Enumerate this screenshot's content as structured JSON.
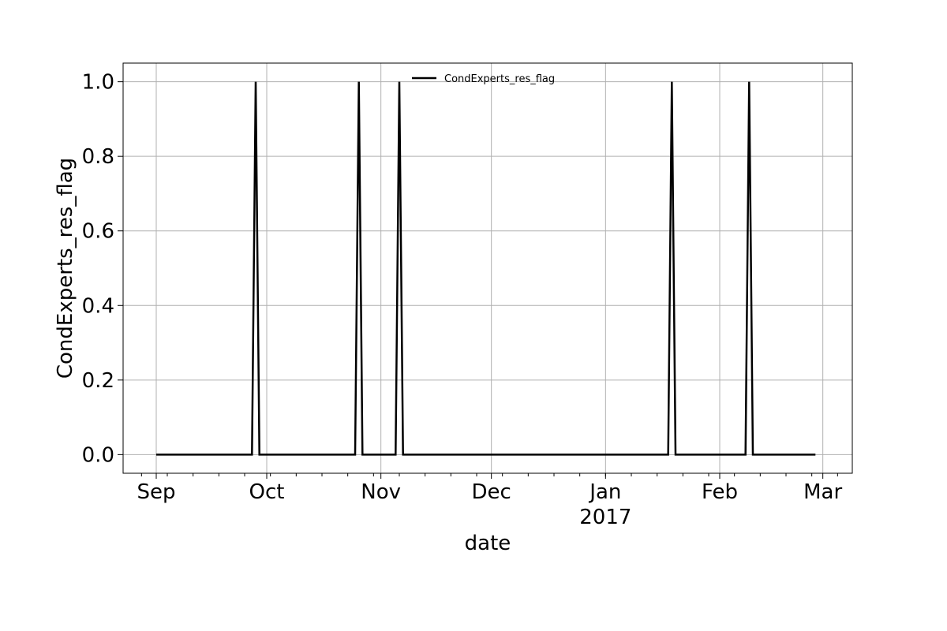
{
  "chart_data": {
    "type": "line",
    "xlabel": "date",
    "ylabel": "CondExperts_res_flag",
    "ylim": [
      -0.05,
      1.05
    ],
    "xlim": [
      "2016-08-23",
      "2017-03-09"
    ],
    "grid": true,
    "legend_position": "top-center",
    "y_ticks": [
      "0.0",
      "0.2",
      "0.4",
      "0.6",
      "0.8",
      "1.0"
    ],
    "x_ticks": [
      {
        "date": "2016-09-01",
        "label": "Sep",
        "sublabel": ""
      },
      {
        "date": "2016-10-01",
        "label": "Oct",
        "sublabel": ""
      },
      {
        "date": "2016-11-01",
        "label": "Nov",
        "sublabel": ""
      },
      {
        "date": "2016-12-01",
        "label": "Dec",
        "sublabel": ""
      },
      {
        "date": "2017-01-01",
        "label": "Jan",
        "sublabel": "2017"
      },
      {
        "date": "2017-02-01",
        "label": "Feb",
        "sublabel": ""
      },
      {
        "date": "2017-03-01",
        "label": "Mar",
        "sublabel": ""
      }
    ],
    "series": [
      {
        "name": "CondExperts_res_flag",
        "color": "#000000",
        "points": [
          [
            "2016-09-01",
            0
          ],
          [
            "2016-09-27",
            0
          ],
          [
            "2016-09-28",
            1
          ],
          [
            "2016-09-29",
            0
          ],
          [
            "2016-10-25",
            0
          ],
          [
            "2016-10-26",
            1
          ],
          [
            "2016-10-27",
            0
          ],
          [
            "2016-11-05",
            0
          ],
          [
            "2016-11-06",
            1
          ],
          [
            "2016-11-07",
            0
          ],
          [
            "2017-01-18",
            0
          ],
          [
            "2017-01-19",
            1
          ],
          [
            "2017-01-20",
            0
          ],
          [
            "2017-02-08",
            0
          ],
          [
            "2017-02-09",
            1
          ],
          [
            "2017-02-10",
            0
          ],
          [
            "2017-02-27",
            0
          ]
        ]
      }
    ]
  }
}
